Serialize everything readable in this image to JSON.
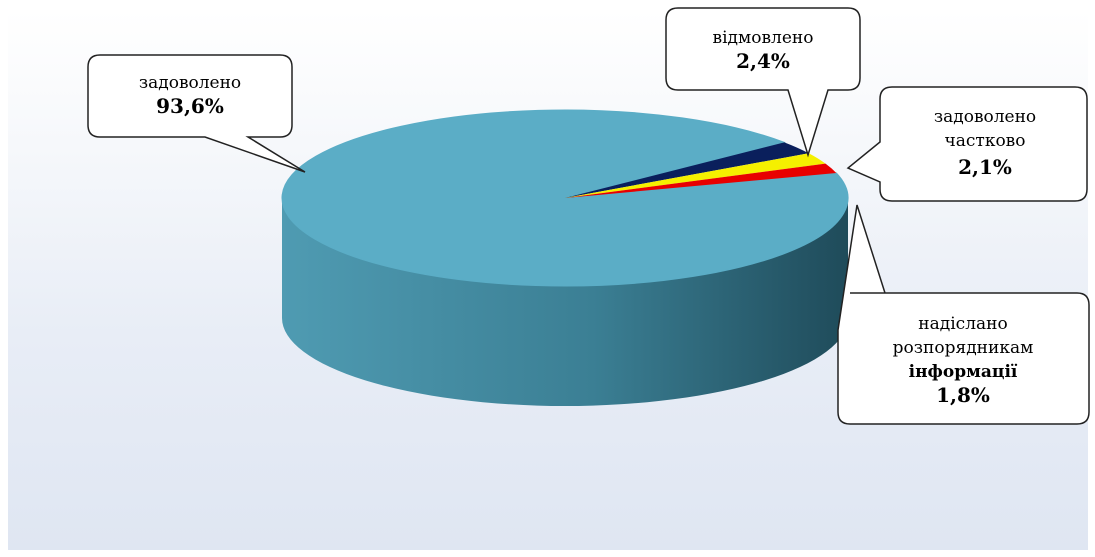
{
  "chart_data": {
    "type": "pie",
    "title": "",
    "slices": [
      {
        "lines": [
          "задоволено"
        ],
        "value_label": "93,6%",
        "value": 93.6,
        "color": "#5badc6",
        "side": "#3a7f95"
      },
      {
        "lines": [
          "відмовлено"
        ],
        "value_label": "2,4%",
        "value": 2.4,
        "color": "#0a1f5c",
        "side": "#06123a"
      },
      {
        "lines": [
          "задоволено",
          "частково"
        ],
        "value_label": "2,1%",
        "value": 2.1,
        "color": "#f5f000",
        "side": "#b3ad00"
      },
      {
        "lines": [
          "надіслано",
          "розпорядникам",
          "інформації"
        ],
        "value_label": "1,8%",
        "value": 1.8,
        "color": "#e80000",
        "side": "#8f0000"
      }
    ]
  }
}
